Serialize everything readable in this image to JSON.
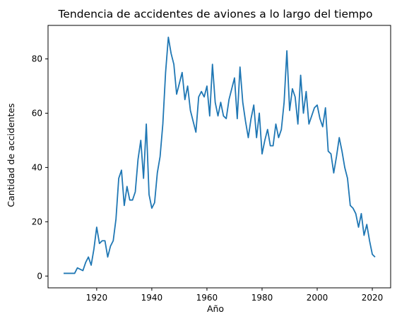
{
  "chart_data": {
    "type": "line",
    "title": "Tendencia de accidentes de aviones a lo largo del tiempo",
    "xlabel": "Año",
    "ylabel": "Cantidad de accidentes",
    "xlim": [
      1902.35,
      2026.65
    ],
    "ylim": [
      -4.35,
      92.35
    ],
    "xticks": [
      1920,
      1940,
      1960,
      1980,
      2000,
      2020
    ],
    "yticks": [
      0,
      20,
      40,
      60,
      80
    ],
    "grid": false,
    "legend": "none",
    "colors": {
      "line": "#1f77b4"
    },
    "series": [
      {
        "x": [
          1908,
          1910,
          1912,
          1913,
          1915,
          1916,
          1917,
          1918,
          1919,
          1920,
          1921,
          1922,
          1923,
          1924,
          1925,
          1926,
          1927,
          1928,
          1929,
          1930,
          1931,
          1932,
          1933,
          1934,
          1935,
          1936,
          1937,
          1938,
          1939,
          1940,
          1941,
          1942,
          1943,
          1944,
          1945,
          1946,
          1947,
          1948,
          1949,
          1950,
          1951,
          1952,
          1953,
          1954,
          1955,
          1956,
          1957,
          1958,
          1959,
          1960,
          1961,
          1962,
          1963,
          1964,
          1965,
          1966,
          1967,
          1968,
          1969,
          1970,
          1971,
          1972,
          1973,
          1974,
          1975,
          1976,
          1977,
          1978,
          1979,
          1980,
          1981,
          1982,
          1983,
          1984,
          1985,
          1986,
          1987,
          1988,
          1989,
          1990,
          1991,
          1992,
          1993,
          1994,
          1995,
          1996,
          1997,
          1998,
          1999,
          2000,
          2001,
          2002,
          2003,
          2004,
          2005,
          2006,
          2007,
          2008,
          2009,
          2010,
          2011,
          2012,
          2013,
          2014,
          2015,
          2016,
          2017,
          2018,
          2019,
          2020,
          2021
        ],
        "values": [
          1,
          1,
          1,
          3,
          2,
          5,
          7,
          4,
          10,
          18,
          12,
          13,
          13,
          7,
          11,
          13,
          21,
          36,
          39,
          26,
          33,
          28,
          28,
          31,
          43,
          50,
          36,
          56,
          30,
          25,
          27,
          38,
          44,
          56,
          75,
          88,
          82,
          78,
          67,
          71,
          75,
          65,
          70,
          61,
          57,
          53,
          66,
          68,
          66,
          70,
          59,
          78,
          64,
          59,
          64,
          59,
          58,
          65,
          69,
          73,
          58,
          77,
          64,
          57,
          51,
          58,
          63,
          51,
          60,
          45,
          50,
          54,
          48,
          48,
          56,
          51,
          54,
          64,
          83,
          61,
          69,
          66,
          56,
          74,
          60,
          68,
          56,
          59,
          62,
          63,
          58,
          55,
          62,
          46,
          45,
          38,
          44,
          51,
          46,
          40,
          36,
          26,
          25,
          23,
          18,
          23,
          15,
          19,
          13,
          8,
          7
        ]
      }
    ]
  }
}
